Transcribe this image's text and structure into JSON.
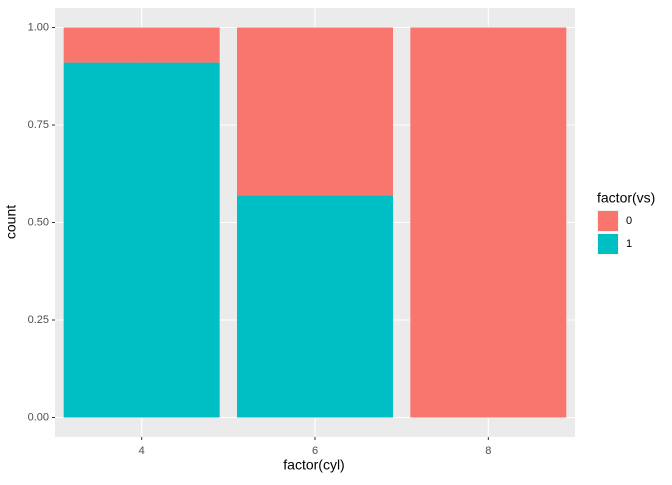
{
  "chart_data": {
    "type": "stacked-bar",
    "x_label": "factor(cyl)",
    "y_label": "count",
    "categories": [
      "4",
      "6",
      "8"
    ],
    "series": [
      {
        "name": "0",
        "color": "#f8766d",
        "values": [
          0.09,
          0.43,
          1
        ]
      },
      {
        "name": "1",
        "color": "#00bfc4",
        "values": [
          0.91,
          0.57,
          0
        ]
      }
    ],
    "legend_title": "factor(vs)",
    "ylim": [
      -0.05,
      1.05
    ],
    "yticks": [
      {
        "value": 0,
        "label": "0.00"
      },
      {
        "value": 0.25,
        "label": "0.25"
      },
      {
        "value": 0.5,
        "label": "0.50"
      },
      {
        "value": 0.75,
        "label": "0.75"
      },
      {
        "value": 1,
        "label": "1.00"
      }
    ],
    "grid": true,
    "legend": "right"
  }
}
